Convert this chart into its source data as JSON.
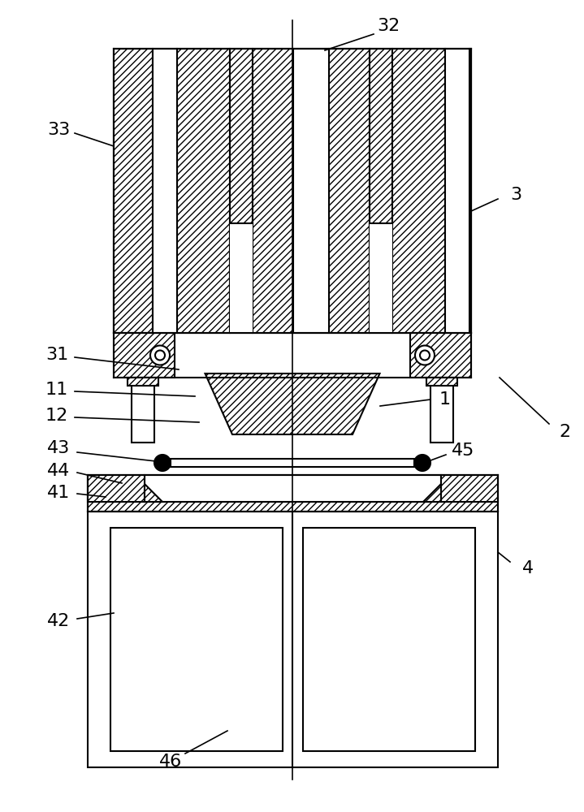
{
  "bg_color": "#ffffff",
  "lc": "#000000",
  "lw": 1.5,
  "fig_w": 7.19,
  "fig_h": 10.0,
  "label_fs": 16
}
